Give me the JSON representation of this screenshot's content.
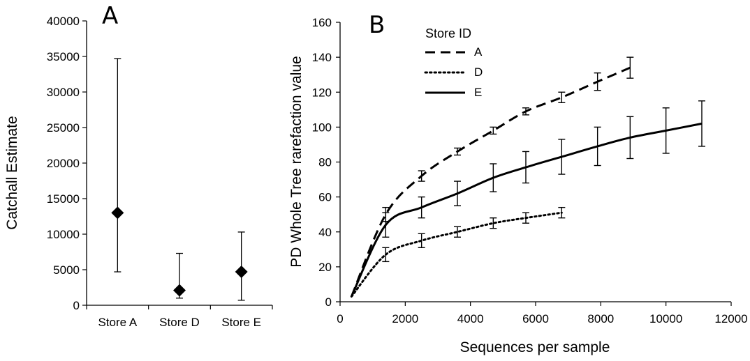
{
  "chart_data": [
    {
      "type": "scatter",
      "panel_label": "A",
      "ylabel": "Catchall Estimate",
      "xlabel": "",
      "categories": [
        "Store A",
        "Store D",
        "Store E"
      ],
      "values": [
        13000,
        2100,
        4700
      ],
      "error_low": [
        4700,
        1000,
        700
      ],
      "error_high": [
        34700,
        7300,
        10300
      ],
      "ylim": [
        0,
        40000
      ],
      "yticks": [
        "0",
        "5000",
        "10000",
        "15000",
        "20000",
        "25000",
        "30000",
        "35000",
        "40000"
      ],
      "marker": "diamond",
      "color": "#000000"
    },
    {
      "type": "line",
      "panel_label": "B",
      "ylabel": "PD Whole Tree rarefaction value",
      "xlabel": "Sequences per sample",
      "xlim": [
        0,
        12000
      ],
      "ylim": [
        0,
        160
      ],
      "xticks": [
        "0",
        "2000",
        "4000",
        "6000",
        "8000",
        "10000",
        "12000"
      ],
      "yticks": [
        "0",
        "20",
        "40",
        "60",
        "80",
        "100",
        "120",
        "140",
        "160"
      ],
      "legend": {
        "title": "Store ID",
        "position": "top-left"
      },
      "series": [
        {
          "name": "A",
          "style": "dashed",
          "x": [
            350,
            1400,
            2500,
            3600,
            4700,
            5700,
            6800,
            7900,
            8900
          ],
          "y": [
            3,
            50,
            72,
            86,
            98,
            109,
            117,
            126,
            134
          ],
          "err": [
            0,
            4,
            3,
            2,
            2,
            2,
            3,
            5,
            6
          ]
        },
        {
          "name": "D",
          "style": "dotted",
          "x": [
            350,
            1400,
            2500,
            3600,
            4700,
            5700,
            6800
          ],
          "y": [
            3,
            27,
            35,
            40,
            45,
            48,
            51
          ],
          "err": [
            0,
            4,
            4,
            3,
            3,
            3,
            3
          ]
        },
        {
          "name": "E",
          "style": "solid",
          "x": [
            350,
            1400,
            2500,
            3600,
            4700,
            5700,
            6800,
            7900,
            8900,
            10000,
            11100
          ],
          "y": [
            3,
            44,
            54,
            62,
            71,
            77,
            83,
            89,
            94,
            98,
            102
          ],
          "err": [
            0,
            7,
            6,
            7,
            8,
            9,
            10,
            11,
            12,
            13,
            13
          ]
        }
      ]
    }
  ]
}
